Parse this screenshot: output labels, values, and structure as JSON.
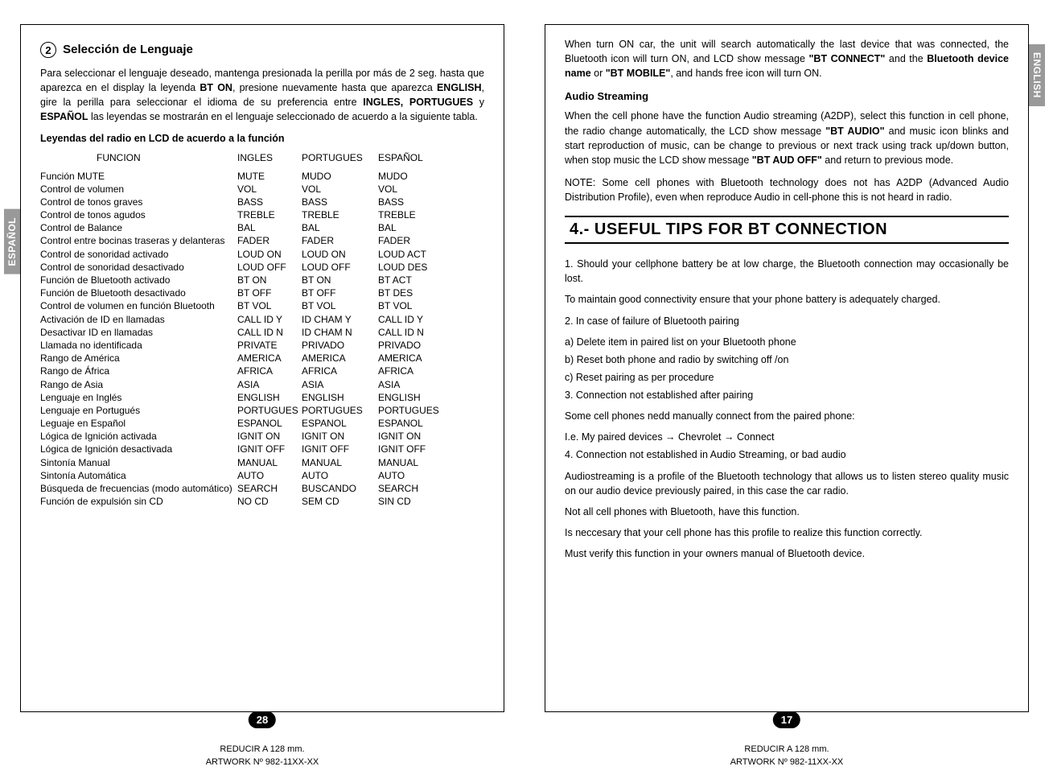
{
  "left": {
    "lang_tab": "ESPAÑOL",
    "circ_num": "2",
    "title": "Selección de Lenguaje",
    "intro_html": "Para seleccionar el lenguaje deseado, mantenga  presionada la  perilla  por  más  de 2 seg. hasta  que  aparezca en el display la leyenda <b>BT ON</b>, presione nuevamente hasta que aparezca <b>ENGLISH</b>, gire la perilla para   seleccionar el   idioma  de  su preferencia  entre  <b>INGLES,  PORTUGUES</b>  y  <b>ESPAÑOL</b>  las  leyendas  se mostrarán en el lenguaje seleccionado de acuerdo a la siguiente tabla.",
    "legend_title": "Leyendas  del radio en LCD de acuerdo a la función",
    "headers": {
      "c1": "FUNCION",
      "c2": "INGLES",
      "c3": "PORTUGUES",
      "c4": "ESPAÑOL"
    },
    "rows": [
      [
        "Función MUTE",
        "MUTE",
        "MUDO",
        "MUDO"
      ],
      [
        "Control de volumen",
        "VOL",
        "VOL",
        "VOL"
      ],
      [
        "Control de tonos graves",
        "BASS",
        "BASS",
        "BASS"
      ],
      [
        "Control de tonos agudos",
        "TREBLE",
        "TREBLE",
        "TREBLE"
      ],
      [
        "Control de Balance",
        "BAL",
        "BAL",
        "BAL"
      ],
      [
        "Control entre bocinas traseras y delanteras",
        "FADER",
        "FADER",
        "FADER"
      ],
      [
        "Control de sonoridad activado",
        "LOUD ON",
        "LOUD ON",
        "LOUD ACT"
      ],
      [
        "Control de sonoridad desactivado",
        "LOUD OFF",
        "LOUD OFF",
        "LOUD DES"
      ],
      [
        "Función de Bluetooth activado",
        "BT ON",
        "BT ON",
        "BT ACT"
      ],
      [
        "Función de Bluetooth desactivado",
        "BT OFF",
        "BT OFF",
        "BT DES"
      ],
      [
        "Control de volumen en función Bluetooth",
        "BT VOL",
        "BT VOL",
        "BT VOL"
      ],
      [
        "Activación de ID en llamadas",
        "CALL ID Y",
        "ID CHAM Y",
        "CALL ID Y"
      ],
      [
        "Desactivar ID en llamadas",
        "CALL ID N",
        "ID CHAM N",
        "CALL ID N"
      ],
      [
        "Llamada no identificada",
        "PRIVATE",
        "PRIVADO",
        "PRIVADO"
      ],
      [
        "Rango de América",
        "AMERICA",
        "AMERICA",
        "AMERICA"
      ],
      [
        "Rango de África",
        "AFRICA",
        "AFRICA",
        "AFRICA"
      ],
      [
        "Rango de Asia",
        "ASIA",
        "ASIA",
        "ASIA"
      ],
      [
        "Lenguaje en Inglés",
        "ENGLISH",
        "ENGLISH",
        "ENGLISH"
      ],
      [
        "Lenguaje en Portugués",
        "PORTUGUES",
        "PORTUGUES",
        "PORTUGUES"
      ],
      [
        "Leguaje en Español",
        "ESPANOL",
        "ESPANOL",
        "ESPANOL"
      ],
      [
        "Lógica de Ignición activada",
        "IGNIT ON",
        "IGNIT ON",
        "IGNIT ON"
      ],
      [
        "Lógica de Ignición desactivada",
        "IGNIT OFF",
        "IGNIT OFF",
        "IGNIT OFF"
      ],
      [
        "Sintonía Manual",
        "MANUAL",
        "MANUAL",
        "MANUAL"
      ],
      [
        "Sintonía Automática",
        "AUTO",
        "AUTO",
        "AUTO"
      ],
      [
        "Búsqueda de frecuencias (modo automático)",
        "SEARCH",
        "BUSCANDO",
        "SEARCH"
      ],
      [
        "Función de expulsión sin CD",
        "NO CD",
        "SEM CD",
        "SIN CD"
      ]
    ],
    "pagenum": "28"
  },
  "right": {
    "lang_tab": "ENGLISH",
    "p1_html": "When turn ON  car, the unit  will search  automatically the  last device that was connected,  the   Bluetooth  icon  will  turn  ON,  and  LCD   show   message   <b>\"BT CONNECT\"</b> and the <b>Bluetooth device name</b> or <b>\"BT MOBILE\"</b>, and  hands  free icon will turn ON.",
    "sub1": "Audio Streaming",
    "p2_html": "When the cell phone have the function Audio streaming (A2DP), select this function in cell phone, the radio change automatically, the LCD show message <b>\"BT AUDIO\"</b>  and music icon blinks and start reproduction of music, can be change to previous or next track  using  track  up/down  button, when  stop  music  the  LCD  show message <b>\"BT AUD OFF\"</b> and return to previous mode.",
    "note": "NOTE: Some cell phones with Bluetooth  technology does not has  A2DP (Advanced Audio Distribution Profile), even when reproduce Audio in cell-phone this is not heard in radio.",
    "bighead": "4.- USEFUL TIPS FOR BT CONNECTION",
    "tips": [
      "1. Should  your  cellphone   battery be at low charge, the Bluetooth connection may occasionally be lost.",
      "To maintain good connectivity ensure that your phone battery is adequately charged.",
      "2. In case of failure of Bluetooth pairing",
      "a) Delete item in paired list on your Bluetooth phone",
      "b) Reset both phone and radio by switching off /on",
      "c) Reset pairing as per procedure",
      "3. Connection not established after pairing",
      "Some cell phones nedd manually connect from the paired phone:",
      "I.e. My paired devices → Chevrolet → Connect",
      "4. Connection not established in Audio Streaming, or bad audio",
      "Audiostreaming is a profile of the Bluetooth technology that allows us to listen stereo quality music on our audio device previously paired, in this case the car radio.",
      "Not all cell phones with Bluetooth, have this function.",
      "Is neccesary that your cell phone has this profile to realize this function correctly.",
      "Must verify this function in your owners manual of Bluetooth device."
    ],
    "pagenum": "17"
  },
  "footer": {
    "line1": "REDUCIR A 128 mm.",
    "line2": "ARTWORK Nº  982-11XX-XX"
  }
}
